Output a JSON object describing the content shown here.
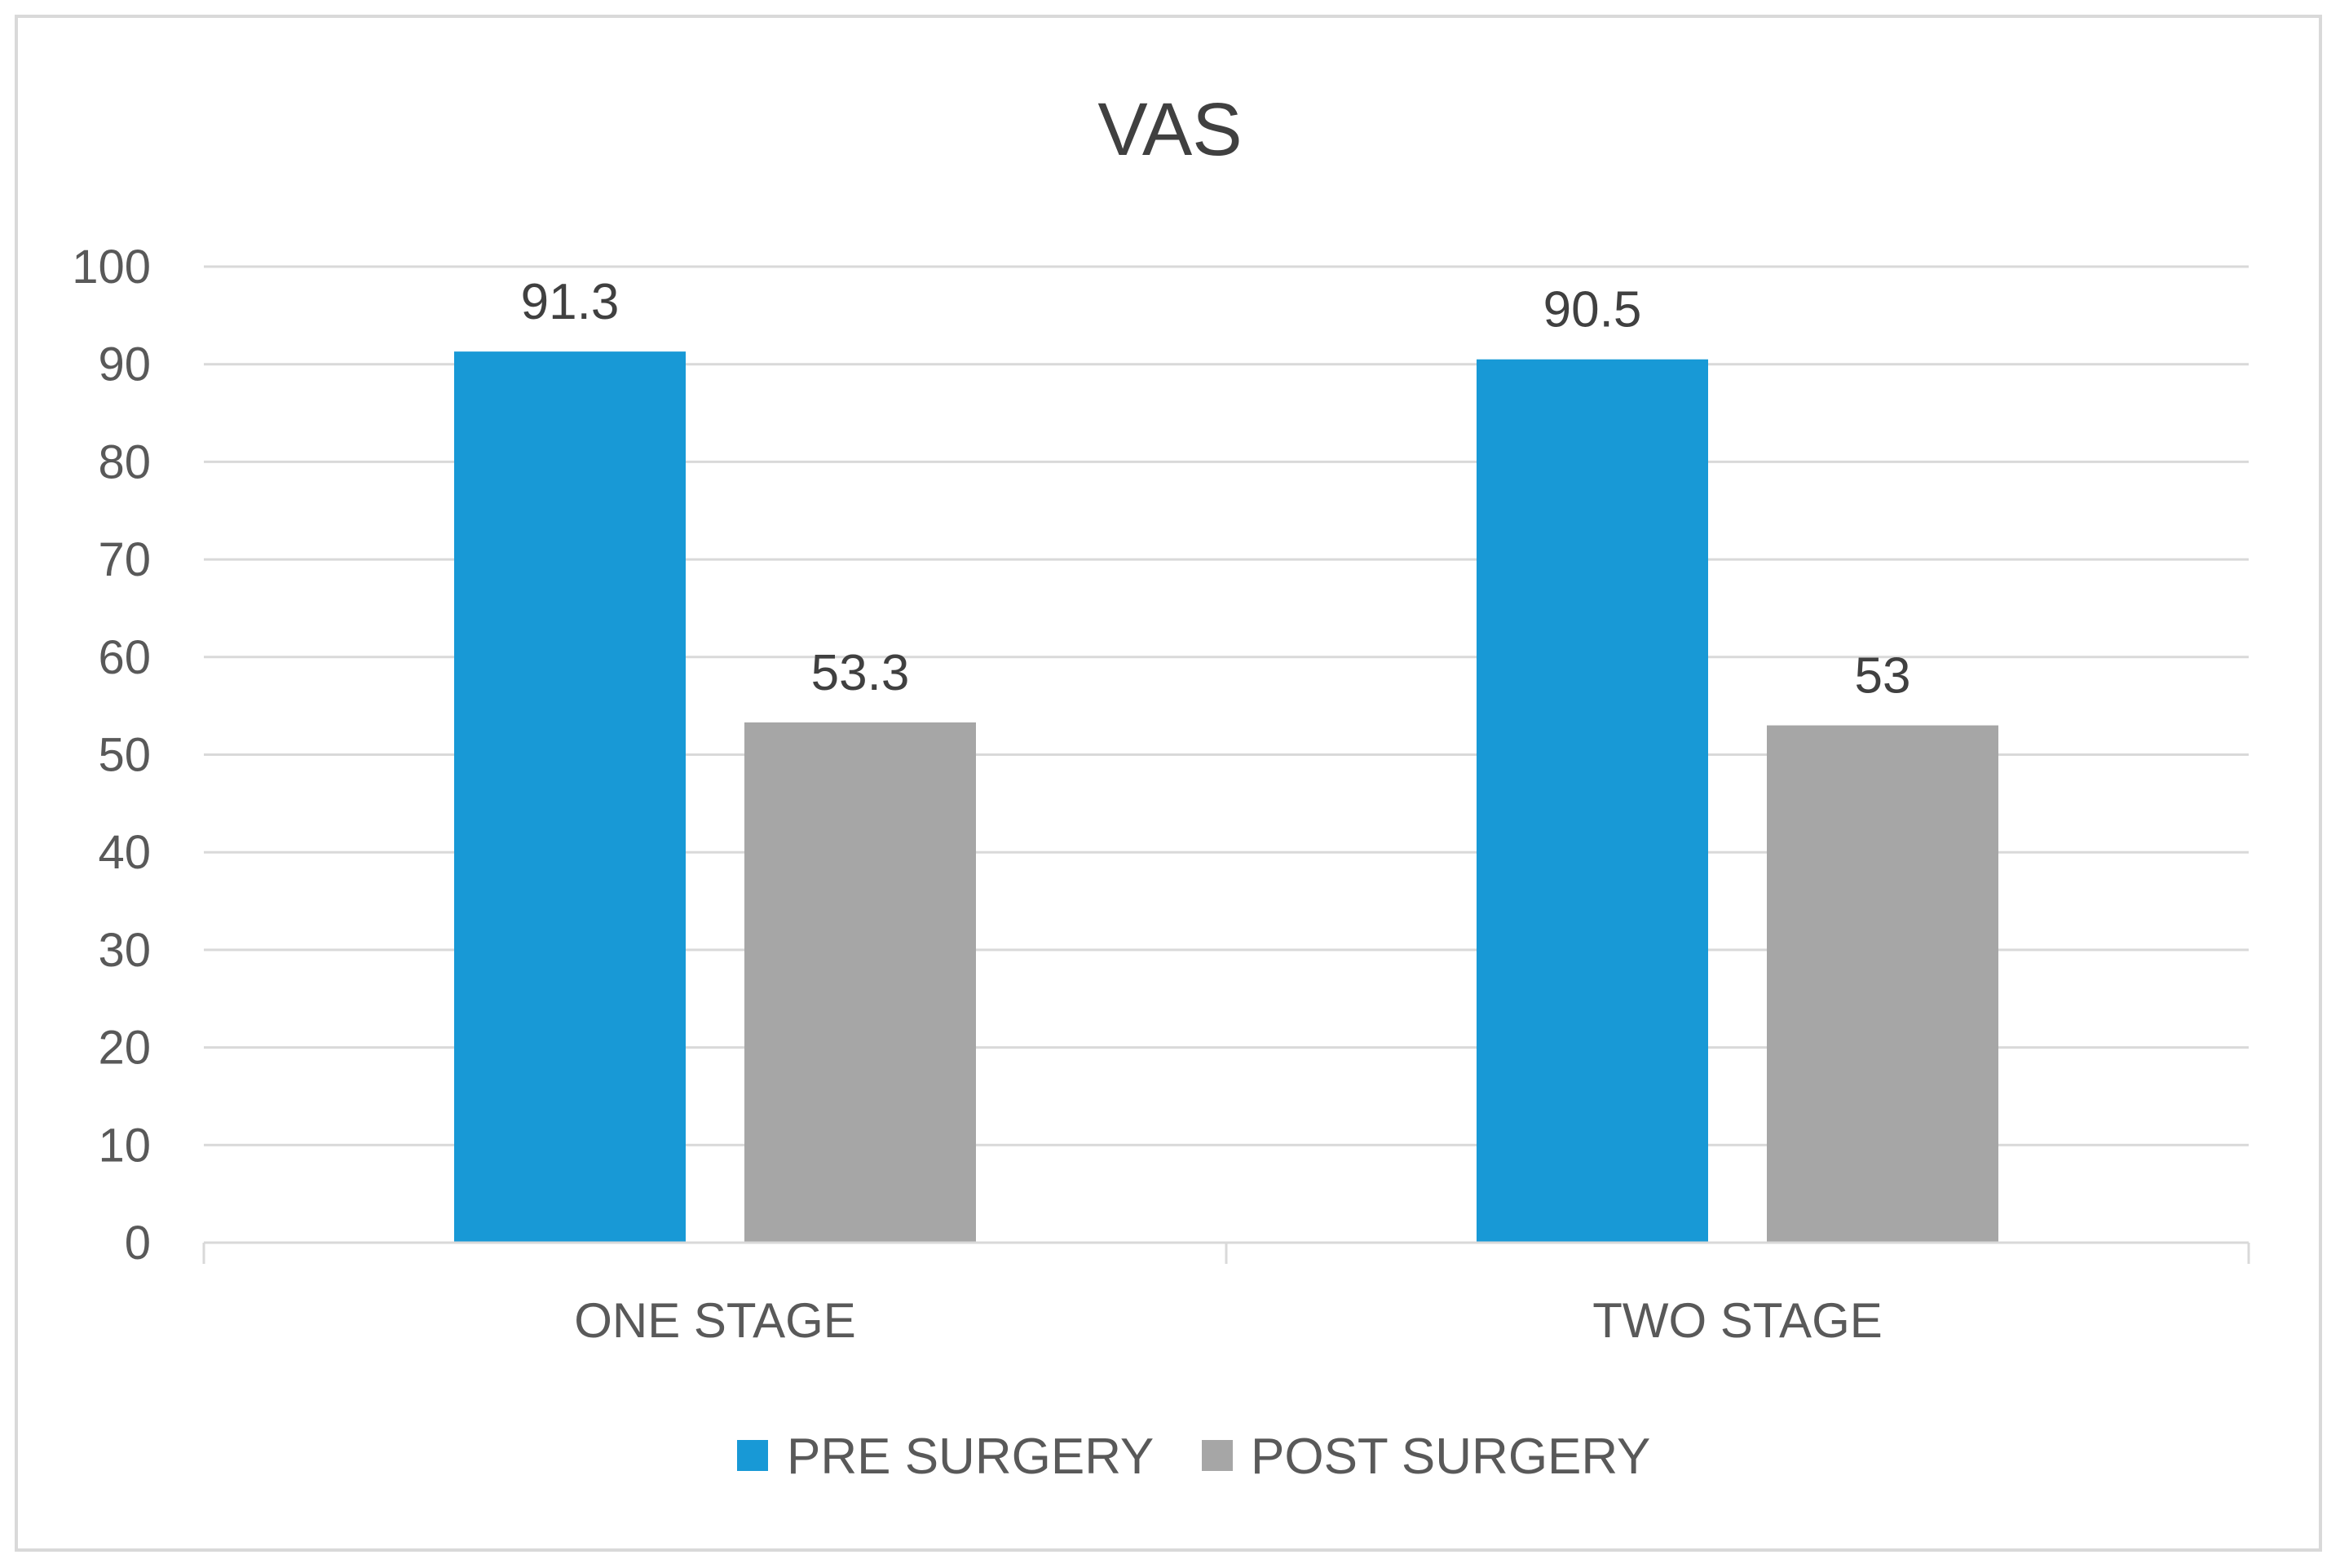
{
  "chart_data": {
    "type": "bar",
    "title": "VAS",
    "xlabel": "",
    "ylabel": "",
    "categories": [
      "ONE STAGE",
      "TWO STAGE"
    ],
    "series": [
      {
        "name": "PRE SURGERY",
        "values": [
          91.3,
          90.5
        ],
        "color": "#1899d6"
      },
      {
        "name": "POST SURGERY",
        "values": [
          53.3,
          53
        ],
        "color": "#a6a6a6"
      }
    ],
    "data_labels": [
      [
        "91.3",
        "90.5"
      ],
      [
        "53.3",
        "53"
      ]
    ],
    "ylim": [
      0,
      100
    ],
    "yticks": [
      "0",
      "10",
      "20",
      "30",
      "40",
      "50",
      "60",
      "70",
      "80",
      "90",
      "100"
    ],
    "grid": true,
    "legend_position": "bottom"
  }
}
